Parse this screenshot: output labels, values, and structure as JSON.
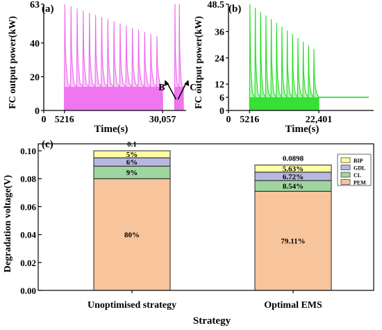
{
  "colors": {
    "panel_a_line": "#ee66ee",
    "panel_b_line": "#22dd22",
    "pem": "#f8c49c",
    "cl": "#9fd69f",
    "gdl": "#b7b7df",
    "bip": "#ffffa0"
  },
  "chart_data": [
    {
      "type": "line",
      "panel_label": "(a)",
      "xlabel": "Time(s)",
      "ylabel": "FC output power(kW)",
      "xlim": [
        0,
        36000
      ],
      "ylim": [
        0,
        63
      ],
      "xticks": [
        {
          "value": 0,
          "label": "0"
        },
        {
          "value": 5216,
          "label": "5216"
        },
        {
          "value": 30057,
          "label": "30,057"
        }
      ],
      "yticks": [
        {
          "value": 0,
          "label": "0"
        },
        {
          "value": 20,
          "label": "20"
        },
        {
          "value": 40,
          "label": "40"
        },
        {
          "value": 63,
          "label": "63"
        }
      ],
      "annotations": [
        {
          "text": "B",
          "x": 31700,
          "y": 14
        },
        {
          "text": "C",
          "x": 35700,
          "y": 14
        }
      ],
      "series": [
        {
          "segments": [
            {
              "x_start": 5216,
              "x_end": 30057,
              "base": 14,
              "peaks_start": 63,
              "peaks_min": 44,
              "peak_count": 16
            },
            {
              "x_start": 33100,
              "x_end": 35300,
              "base": 14,
              "peaks_start": 63,
              "peaks_min": 63,
              "peak_count": 2
            }
          ]
        }
      ]
    },
    {
      "type": "line",
      "panel_label": "(b)",
      "xlabel": "Time(s)",
      "ylabel": "FC output power(kW)",
      "xlim": [
        0,
        36000
      ],
      "ylim": [
        0,
        48.5
      ],
      "xticks": [
        {
          "value": 0,
          "label": "0"
        },
        {
          "value": 5216,
          "label": "5216"
        },
        {
          "value": 22401,
          "label": "22,401"
        }
      ],
      "yticks": [
        {
          "value": 0,
          "label": "0"
        },
        {
          "value": 6,
          "label": "6"
        },
        {
          "value": 12,
          "label": "12"
        },
        {
          "value": 24,
          "label": "24"
        },
        {
          "value": 36,
          "label": "36"
        },
        {
          "value": 48.5,
          "label": "48.5"
        }
      ],
      "series": [
        {
          "segments": [
            {
              "x_start": 5216,
              "x_end": 22401,
              "base": 6,
              "peaks_start": 48.5,
              "peaks_min": 28,
              "peak_count": 13
            },
            {
              "x_start": 22401,
              "x_end": 34800,
              "base": 6,
              "flat": true
            }
          ]
        }
      ]
    },
    {
      "type": "bar",
      "stacked": true,
      "panel_label": "(c)",
      "xlabel": "Strategy",
      "ylabel": "Degradation voltage(V)",
      "ylim": [
        0,
        0.105
      ],
      "yticks": [
        "0.00",
        "0.02",
        "0.04",
        "0.06",
        "0.08",
        "0.10"
      ],
      "categories": [
        "Unoptimised strategy",
        "Optimal EMS"
      ],
      "totals": [
        0.1,
        0.0898
      ],
      "total_labels": [
        "0.1",
        "0.0898"
      ],
      "series": [
        {
          "name": "PEM",
          "values": [
            0.08,
            0.071
          ],
          "labels": [
            "80%",
            "79.11%"
          ]
        },
        {
          "name": "CL",
          "values": [
            0.009,
            0.0077
          ],
          "labels": [
            "9%",
            "8.54%"
          ]
        },
        {
          "name": "GDL",
          "values": [
            0.006,
            0.006
          ],
          "labels": [
            "6%",
            "6.72%"
          ]
        },
        {
          "name": "BIP",
          "values": [
            0.005,
            0.0051
          ],
          "labels": [
            "5%",
            "5.63%"
          ]
        }
      ],
      "legend_order": [
        "BIP",
        "GDL",
        "CL",
        "PEM"
      ],
      "legend_position": "top-right"
    }
  ]
}
